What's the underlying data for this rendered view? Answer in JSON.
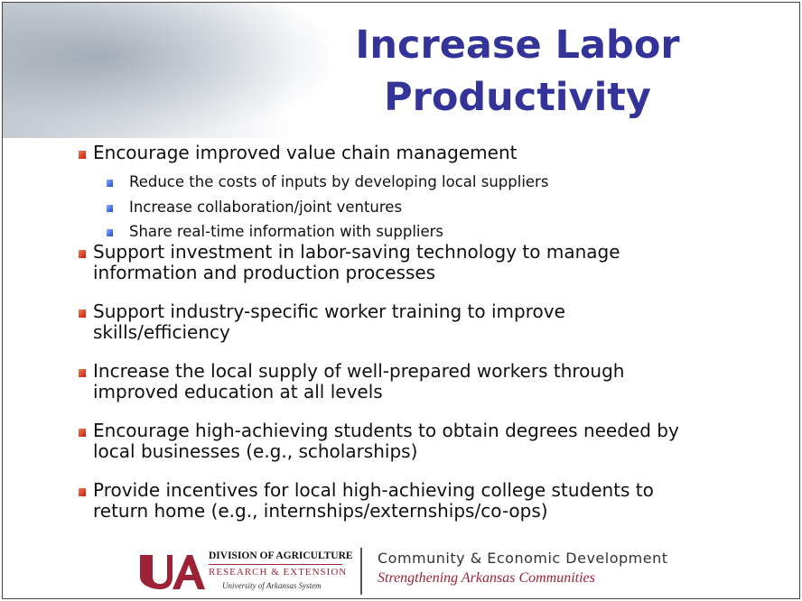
{
  "title": "Increase Labor Productivity",
  "bullets": [
    {
      "lines": [
        "Encourage improved value chain management"
      ],
      "sub": [
        "Reduce the costs of inputs by developing local suppliers",
        "Increase collaboration/joint ventures",
        "Share real-time information with suppliers"
      ]
    },
    {
      "lines": [
        "Support investment in labor-saving technology to manage",
        "information and production processes"
      ]
    },
    {
      "lines": [
        "Support industry-specific worker training to improve",
        "skills/efficiency"
      ]
    },
    {
      "lines": [
        "Increase the local supply of well-prepared workers through",
        "improved education at all levels"
      ]
    },
    {
      "lines": [
        "Encourage high-achieving students to obtain degrees needed by",
        "local businesses (e.g., scholarships)"
      ]
    },
    {
      "lines": [
        "Provide incentives for local high-achieving college students to",
        "return home (e.g., internships/externships/co-ops)"
      ]
    }
  ],
  "footer": {
    "division": "DIVISION OF AGRICULTURE",
    "research": "RESEARCH & EXTENSION",
    "system": "University of Arkansas System",
    "program": "Community & Economic Development",
    "tagline": "Strengthening Arkansas Communities"
  }
}
